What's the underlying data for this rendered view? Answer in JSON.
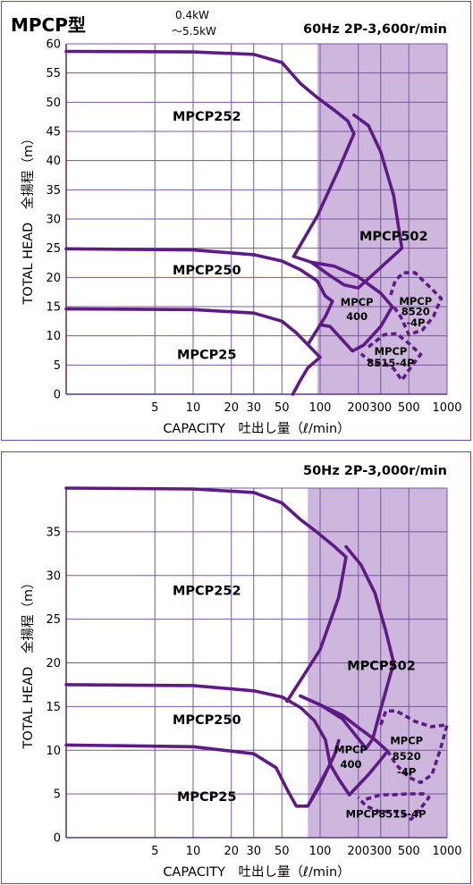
{
  "header": {
    "model": "MPCP型",
    "power_min": "0.4kW",
    "power_max": "～5.5kW"
  },
  "chart_data": [
    {
      "type": "line",
      "title": "60Hz 2P-3,600r/min",
      "xlabel": "CAPACITY　吐出し量（ℓ/min）",
      "ylabel": "TOTAL HEAD　全揚程（m）",
      "xscale": "log",
      "xlim": [
        1,
        1000
      ],
      "ylim": [
        0,
        60
      ],
      "x_ticks": [
        5,
        10,
        20,
        30,
        50,
        100,
        200,
        300,
        500,
        1000
      ],
      "x_tick_labels": [
        "5",
        "10",
        "20",
        "30",
        "50",
        "100",
        "200",
        "300",
        "500",
        "1000"
      ],
      "y_ticks": [
        0,
        5,
        10,
        15,
        20,
        25,
        30,
        35,
        40,
        45,
        50,
        55,
        60
      ],
      "y_tick_labels": [
        "0",
        "5",
        "10",
        "15",
        "20",
        "25",
        "30",
        "35",
        "40",
        "45",
        "50",
        "55",
        "60"
      ],
      "grid": true,
      "shaded_from_x": 95,
      "shade_color": "#cdb7dd",
      "line_color": "#5e1b86",
      "series": [
        {
          "name": "MPCP252",
          "style": "solid",
          "points": [
            [
              1,
              58.7
            ],
            [
              10,
              58.6
            ],
            [
              30,
              58.2
            ],
            [
              50,
              56.8
            ],
            [
              70,
              53.2
            ],
            [
              95,
              50.8
            ],
            [
              130,
              48.6
            ],
            [
              165,
              46.8
            ],
            [
              185,
              44.6
            ],
            [
              140,
              38.5
            ],
            [
              95,
              30.5
            ],
            [
              62,
              23.6
            ]
          ]
        },
        {
          "name": "MPCP502",
          "style": "solid",
          "points": [
            [
              185,
              47.8
            ],
            [
              240,
              46
            ],
            [
              300,
              41.5
            ],
            [
              380,
              34
            ],
            [
              440,
              25
            ],
            [
              200,
              18.2
            ],
            [
              155,
              18.7
            ],
            [
              120,
              20.3
            ],
            [
              85,
              22.6
            ],
            [
              62,
              23.6
            ]
          ]
        },
        {
          "name": "MPCP250",
          "style": "solid",
          "points": [
            [
              1,
              24.9
            ],
            [
              10,
              24.7
            ],
            [
              30,
              23.9
            ],
            [
              50,
              22.8
            ],
            [
              70,
              21.3
            ],
            [
              95,
              19.4
            ],
            [
              110,
              16.8
            ],
            [
              125,
              15.9
            ],
            [
              110,
              13.3
            ],
            [
              80,
              8.5
            ]
          ]
        },
        {
          "name": "MPCP400",
          "style": "solid",
          "points": [
            [
              85,
              22.6
            ],
            [
              130,
              21.9
            ],
            [
              200,
              20.1
            ],
            [
              300,
              17.3
            ],
            [
              370,
              15
            ],
            [
              300,
              11.6
            ],
            [
              220,
              8.4
            ],
            [
              180,
              7.4
            ],
            [
              120,
              11.6
            ],
            [
              100,
              11.9
            ]
          ]
        },
        {
          "name": "MPCP25",
          "style": "solid",
          "points": [
            [
              1,
              14.6
            ],
            [
              10,
              14.5
            ],
            [
              30,
              13.9
            ],
            [
              50,
              12.5
            ],
            [
              65,
              10.5
            ],
            [
              80,
              8.5
            ],
            [
              100,
              6.3
            ],
            [
              80,
              4.5
            ],
            [
              70,
              2.4
            ],
            [
              61,
              0
            ]
          ]
        },
        {
          "name": "MPCP8520-4P",
          "style": "dashed",
          "points": [
            [
              360,
              17
            ],
            [
              390,
              19.4
            ],
            [
              450,
              20.8
            ],
            [
              560,
              20.8
            ],
            [
              750,
              18.1
            ],
            [
              900,
              16.4
            ],
            [
              780,
              13.3
            ],
            [
              640,
              11
            ],
            [
              500,
              10.2
            ],
            [
              430,
              13.3
            ],
            [
              380,
              15
            ]
          ]
        },
        {
          "name": "MPCP8515-4P",
          "style": "dashed",
          "points": [
            [
              240,
              8.1
            ],
            [
              320,
              10.2
            ],
            [
              400,
              10.4
            ],
            [
              500,
              8.7
            ],
            [
              620,
              6.8
            ],
            [
              530,
              4.9
            ],
            [
              440,
              2.4
            ],
            [
              380,
              4.4
            ],
            [
              320,
              5.3
            ],
            [
              260,
              5.3
            ],
            [
              210,
              6.9
            ]
          ]
        }
      ],
      "labels": [
        {
          "text": "MPCP252",
          "x": 5,
          "y": 47.6
        },
        {
          "text": "MPCP502",
          "x": 350,
          "y": 27.1
        },
        {
          "text": "MPCP250",
          "x": 5,
          "y": 21.3
        },
        {
          "text": "MPCP",
          "x": 195,
          "y": 15.9
        },
        {
          "text": "400",
          "x": 195,
          "y": 13.5
        },
        {
          "text": "MPCP",
          "x": 565,
          "y": 16.1
        },
        {
          "text": "8520",
          "x": 565,
          "y": 14.3
        },
        {
          "text": "-4P",
          "x": 565,
          "y": 12.4
        },
        {
          "text": "MPCP",
          "x": 360,
          "y": 7.5
        },
        {
          "text": "8515-4P",
          "x": 360,
          "y": 5.5
        },
        {
          "text": "MPCP25",
          "x": 5,
          "y": 6.8
        }
      ]
    },
    {
      "type": "line",
      "title": "50Hz 2P-3,000r/min",
      "xlabel": "CAPACITY　吐出し量（ℓ/min）",
      "ylabel": "TOTAL HEAD　全揚程（m）",
      "xscale": "log",
      "xlim": [
        1,
        1000
      ],
      "ylim": [
        0,
        40
      ],
      "x_ticks": [
        5,
        10,
        20,
        30,
        50,
        100,
        200,
        300,
        500,
        1000
      ],
      "x_tick_labels": [
        "5",
        "10",
        "20",
        "30",
        "50",
        "100",
        "200",
        "300",
        "500",
        "1000"
      ],
      "y_ticks": [
        0,
        5,
        10,
        15,
        20,
        25,
        30,
        35
      ],
      "y_tick_labels": [
        "0",
        "5",
        "10",
        "15",
        "20",
        "25",
        "30",
        "35"
      ],
      "grid": true,
      "shaded_from_x": 80,
      "shade_color": "#cdb7dd",
      "line_color": "#5e1b86",
      "series": [
        {
          "name": "MPCP252",
          "style": "solid",
          "points": [
            [
              1,
              40
            ],
            [
              10,
              39.9
            ],
            [
              30,
              39.5
            ],
            [
              50,
              38.3
            ],
            [
              70,
              36.4
            ],
            [
              90,
              35.2
            ],
            [
              130,
              33.3
            ],
            [
              160,
              32.1
            ],
            [
              140,
              27.5
            ],
            [
              100,
              21.5
            ],
            [
              55,
              15.6
            ]
          ]
        },
        {
          "name": "MPCP502",
          "style": "solid",
          "points": [
            [
              160,
              33.3
            ],
            [
              210,
              31.2
            ],
            [
              270,
              28
            ],
            [
              330,
              23.6
            ],
            [
              380,
              20
            ],
            [
              300,
              14.7
            ],
            [
              260,
              11.3
            ],
            [
              230,
              10.2
            ],
            [
              150,
              13.6
            ],
            [
              100,
              15.2
            ],
            [
              70,
              16.2
            ]
          ]
        },
        {
          "name": "MPCP250",
          "style": "solid",
          "points": [
            [
              1,
              17.5
            ],
            [
              10,
              17.4
            ],
            [
              30,
              16.8
            ],
            [
              50,
              16.1
            ],
            [
              70,
              14.9
            ],
            [
              90,
              13.4
            ],
            [
              110,
              11.2
            ],
            [
              120,
              8.4
            ],
            [
              80,
              3.6
            ]
          ]
        },
        {
          "name": "MPCP400",
          "style": "solid",
          "points": [
            [
              70,
              16.2
            ],
            [
              100,
              15.2
            ],
            [
              150,
              14
            ],
            [
              200,
              12.6
            ],
            [
              270,
              11.2
            ],
            [
              340,
              9.9
            ],
            [
              300,
              8.9
            ],
            [
              240,
              7.2
            ],
            [
              170,
              4.9
            ],
            [
              140,
              6.7
            ],
            [
              120,
              8.4
            ]
          ]
        },
        {
          "name": "MPCP25",
          "style": "solid",
          "points": [
            [
              1,
              10.6
            ],
            [
              10,
              10.4
            ],
            [
              30,
              9.6
            ],
            [
              45,
              8
            ],
            [
              55,
              5.5
            ],
            [
              65,
              3.6
            ],
            [
              80,
              3.6
            ],
            [
              100,
              6
            ],
            [
              130,
              9.5
            ],
            [
              140,
              11.1
            ]
          ]
        },
        {
          "name": "MPCP8520-4P",
          "style": "dashed",
          "points": [
            [
              300,
              12.9
            ],
            [
              330,
              14.5
            ],
            [
              400,
              14.5
            ],
            [
              560,
              13.3
            ],
            [
              750,
              12.7
            ],
            [
              1000,
              12.9
            ],
            [
              890,
              10.2
            ],
            [
              760,
              7.2
            ],
            [
              620,
              6.3
            ],
            [
              500,
              6.9
            ],
            [
              400,
              8.3
            ],
            [
              340,
              9.9
            ]
          ]
        },
        {
          "name": "MPCP8515-4P",
          "style": "dashed",
          "points": [
            [
              230,
              4.4
            ],
            [
              300,
              4.9
            ],
            [
              380,
              4.9
            ],
            [
              480,
              5
            ],
            [
              560,
              5
            ],
            [
              650,
              5
            ],
            [
              720,
              4.6
            ],
            [
              610,
              3.2
            ],
            [
              520,
              2.1
            ],
            [
              470,
              2.6
            ],
            [
              410,
              3
            ],
            [
              350,
              3
            ],
            [
              290,
              3
            ],
            [
              230,
              3.6
            ],
            [
              200,
              4.6
            ]
          ]
        }
      ],
      "labels": [
        {
          "text": "MPCP252",
          "x": 5,
          "y": 28.3
        },
        {
          "text": "MPCP502",
          "x": 280,
          "y": 19.7
        },
        {
          "text": "MPCP250",
          "x": 5,
          "y": 13.5
        },
        {
          "text": "MPCP",
          "x": 175,
          "y": 10.2
        },
        {
          "text": "400",
          "x": 175,
          "y": 8.5
        },
        {
          "text": "MPCP",
          "x": 480,
          "y": 11.2
        },
        {
          "text": "8520",
          "x": 480,
          "y": 9.4
        },
        {
          "text": "-4P",
          "x": 480,
          "y": 7.6
        },
        {
          "text": "MPCP8515-4P",
          "x": 330,
          "y": 2.8
        },
        {
          "text": "MPCP25",
          "x": 5,
          "y": 4.7
        }
      ]
    }
  ]
}
